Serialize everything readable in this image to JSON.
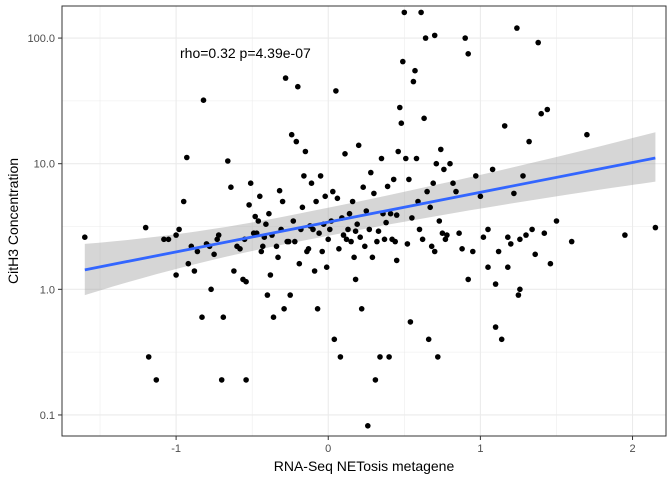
{
  "chart_data": {
    "type": "scatter",
    "xlabel": "RNA-Seq NETosis metagene",
    "ylabel": "CitH3 Concentration",
    "annotation": "rho=0.32 p=4.39e-07",
    "x_ticks": [
      -1,
      0,
      1,
      2
    ],
    "x_tick_labels": [
      "-1",
      "0",
      "1",
      "2"
    ],
    "y_scale": "log10",
    "y_ticks": [
      0.1,
      1,
      10,
      100
    ],
    "y_tick_labels": [
      "0.1",
      "1.0",
      "10.0",
      "100.0"
    ],
    "xlim": [
      -1.75,
      2.22
    ],
    "ylim": [
      0.068,
      180
    ],
    "grid": true,
    "colors": {
      "points": "#000000",
      "fit_line": "#3366FF",
      "confidence_band": "#999999",
      "panel_border": "#333333",
      "grid": "#ebebeb"
    },
    "fit": {
      "method": "lm",
      "x": [
        -1.6,
        2.15
      ],
      "y": [
        1.43,
        11.1
      ],
      "se_lower": [
        0.9,
        7.2
      ],
      "se_upper": [
        2.3,
        17.8
      ]
    },
    "points": [
      [
        -1.6,
        2.6
      ],
      [
        -1.2,
        3.1
      ],
      [
        -1.18,
        0.29
      ],
      [
        -1.13,
        0.19
      ],
      [
        -1.08,
        2.5
      ],
      [
        -1.05,
        2.5
      ],
      [
        -1.0,
        2.7
      ],
      [
        -1.0,
        1.3
      ],
      [
        -0.98,
        3.0
      ],
      [
        -0.95,
        5.0
      ],
      [
        -0.93,
        11.2
      ],
      [
        -0.92,
        1.6
      ],
      [
        -0.9,
        2.2
      ],
      [
        -0.88,
        1.4
      ],
      [
        -0.86,
        2.0
      ],
      [
        -0.83,
        0.6
      ],
      [
        -0.82,
        32
      ],
      [
        -0.8,
        2.3
      ],
      [
        -0.78,
        2.2
      ],
      [
        -0.77,
        1.0
      ],
      [
        -0.75,
        1.9
      ],
      [
        -0.73,
        2.5
      ],
      [
        -0.72,
        2.7
      ],
      [
        -0.7,
        0.19
      ],
      [
        -0.69,
        0.6
      ],
      [
        -0.66,
        10.5
      ],
      [
        -0.64,
        6.5
      ],
      [
        -0.62,
        1.4
      ],
      [
        -0.6,
        2.2
      ],
      [
        -0.58,
        2.1
      ],
      [
        -0.56,
        1.2
      ],
      [
        -0.55,
        2.5
      ],
      [
        -0.54,
        1.15
      ],
      [
        -0.54,
        0.19
      ],
      [
        -0.52,
        4.7
      ],
      [
        -0.51,
        7.0
      ],
      [
        -0.49,
        2.8
      ],
      [
        -0.48,
        3.8
      ],
      [
        -0.47,
        2.8
      ],
      [
        -0.46,
        3.5
      ],
      [
        -0.45,
        5.5
      ],
      [
        -0.44,
        2.0
      ],
      [
        -0.43,
        2.2
      ],
      [
        -0.42,
        2.6
      ],
      [
        -0.41,
        3.3
      ],
      [
        -0.4,
        0.9
      ],
      [
        -0.39,
        4.0
      ],
      [
        -0.38,
        1.3
      ],
      [
        -0.37,
        2.7
      ],
      [
        -0.36,
        0.6
      ],
      [
        -0.34,
        2.2
      ],
      [
        -0.33,
        1.8
      ],
      [
        -0.32,
        6.1
      ],
      [
        -0.31,
        3.0
      ],
      [
        -0.3,
        5.0
      ],
      [
        -0.29,
        0.7
      ],
      [
        -0.28,
        48
      ],
      [
        -0.27,
        2.4
      ],
      [
        -0.26,
        2.4
      ],
      [
        -0.25,
        0.9
      ],
      [
        -0.24,
        17
      ],
      [
        -0.23,
        3.5
      ],
      [
        -0.22,
        2.4
      ],
      [
        -0.21,
        15
      ],
      [
        -0.2,
        41
      ],
      [
        -0.19,
        1.6
      ],
      [
        -0.18,
        3.0
      ],
      [
        -0.17,
        4.5
      ],
      [
        -0.16,
        8.0
      ],
      [
        -0.15,
        12.5
      ],
      [
        -0.14,
        2.0
      ],
      [
        -0.13,
        2.1
      ],
      [
        -0.12,
        3.2
      ],
      [
        -0.11,
        7.0
      ],
      [
        -0.1,
        3.0
      ],
      [
        -0.09,
        1.4
      ],
      [
        -0.08,
        5.0
      ],
      [
        -0.07,
        0.7
      ],
      [
        -0.06,
        2.8
      ],
      [
        -0.05,
        8.0
      ],
      [
        -0.04,
        2.0
      ],
      [
        -0.03,
        3.3
      ],
      [
        -0.02,
        5.5
      ],
      [
        -0.01,
        1.5
      ],
      [
        0.0,
        2.5
      ],
      [
        0.01,
        3.0
      ],
      [
        0.02,
        3.5
      ],
      [
        0.03,
        6.0
      ],
      [
        0.04,
        0.4
      ],
      [
        0.05,
        38
      ],
      [
        0.06,
        5.3
      ],
      [
        0.07,
        2.1
      ],
      [
        0.08,
        0.29
      ],
      [
        0.09,
        3.7
      ],
      [
        0.1,
        2.7
      ],
      [
        0.11,
        12
      ],
      [
        0.12,
        2.5
      ],
      [
        0.13,
        3.0
      ],
      [
        0.14,
        4.0
      ],
      [
        0.15,
        2.4
      ],
      [
        0.16,
        5.0
      ],
      [
        0.17,
        1.8
      ],
      [
        0.18,
        2.9
      ],
      [
        0.19,
        3.3
      ],
      [
        0.2,
        14
      ],
      [
        0.21,
        2.6
      ],
      [
        0.22,
        0.7
      ],
      [
        0.23,
        6.5
      ],
      [
        0.24,
        2.2
      ],
      [
        0.25,
        4.2
      ],
      [
        0.26,
        0.082
      ],
      [
        0.27,
        3.0
      ],
      [
        0.28,
        8.5
      ],
      [
        0.29,
        1.8
      ],
      [
        0.3,
        5.8
      ],
      [
        0.31,
        0.19
      ],
      [
        0.32,
        2.4
      ],
      [
        0.33,
        2.9
      ],
      [
        0.34,
        0.29
      ],
      [
        0.35,
        11
      ],
      [
        0.36,
        4.0
      ],
      [
        0.37,
        2.5
      ],
      [
        0.38,
        3.4
      ],
      [
        0.39,
        6.6
      ],
      [
        0.4,
        0.29
      ],
      [
        0.41,
        4.0
      ],
      [
        0.42,
        2.5
      ],
      [
        0.43,
        7.5
      ],
      [
        0.44,
        2.4
      ],
      [
        0.45,
        3.9
      ],
      [
        0.46,
        12.5
      ],
      [
        0.47,
        28
      ],
      [
        0.48,
        21
      ],
      [
        0.49,
        65
      ],
      [
        0.5,
        160
      ],
      [
        0.51,
        11
      ],
      [
        0.52,
        2.3
      ],
      [
        0.53,
        7.5
      ],
      [
        0.54,
        0.55
      ],
      [
        0.55,
        3.7
      ],
      [
        0.56,
        45
      ],
      [
        0.57,
        55
      ],
      [
        0.58,
        11
      ],
      [
        0.59,
        5.0
      ],
      [
        0.6,
        3.0
      ],
      [
        0.61,
        160
      ],
      [
        0.62,
        2.5
      ],
      [
        0.63,
        23
      ],
      [
        0.64,
        100
      ],
      [
        0.65,
        6.0
      ],
      [
        0.66,
        0.4
      ],
      [
        0.67,
        4.5
      ],
      [
        0.68,
        2.2
      ],
      [
        0.69,
        7.0
      ],
      [
        0.7,
        105
      ],
      [
        0.71,
        10
      ],
      [
        0.72,
        0.29
      ],
      [
        0.73,
        3.5
      ],
      [
        0.74,
        13
      ],
      [
        0.75,
        2.8
      ],
      [
        0.76,
        9.0
      ],
      [
        0.77,
        2.5
      ],
      [
        0.78,
        2.7
      ],
      [
        0.8,
        10
      ],
      [
        0.82,
        7.0
      ],
      [
        0.84,
        6.0
      ],
      [
        0.86,
        2.8
      ],
      [
        0.88,
        2.1
      ],
      [
        0.9,
        100
      ],
      [
        0.92,
        75
      ],
      [
        0.95,
        2.0
      ],
      [
        0.97,
        8.0
      ],
      [
        1.0,
        5.5
      ],
      [
        1.02,
        2.6
      ],
      [
        1.05,
        3.0
      ],
      [
        1.08,
        9.0
      ],
      [
        1.1,
        0.5
      ],
      [
        1.12,
        2.0
      ],
      [
        1.14,
        0.4
      ],
      [
        1.16,
        20
      ],
      [
        1.18,
        2.6
      ],
      [
        1.2,
        2.3
      ],
      [
        1.22,
        5.8
      ],
      [
        1.24,
        120
      ],
      [
        1.26,
        2.5
      ],
      [
        1.28,
        8.0
      ],
      [
        1.3,
        2.7
      ],
      [
        1.32,
        15
      ],
      [
        1.34,
        3.0
      ],
      [
        1.36,
        1.9
      ],
      [
        1.38,
        92
      ],
      [
        1.4,
        25
      ],
      [
        1.42,
        2.8
      ],
      [
        1.44,
        27
      ],
      [
        1.46,
        1.6
      ],
      [
        1.5,
        3.5
      ],
      [
        1.6,
        2.4
      ],
      [
        1.7,
        17
      ],
      [
        1.95,
        2.7
      ],
      [
        2.15,
        3.1
      ],
      [
        1.05,
        1.5
      ],
      [
        0.92,
        1.2
      ],
      [
        0.7,
        2.0
      ],
      [
        0.45,
        1.7
      ],
      [
        0.18,
        1.2
      ],
      [
        1.25,
        0.9
      ],
      [
        1.26,
        1.0
      ],
      [
        1.18,
        1.5
      ],
      [
        1.1,
        1.1
      ]
    ]
  }
}
